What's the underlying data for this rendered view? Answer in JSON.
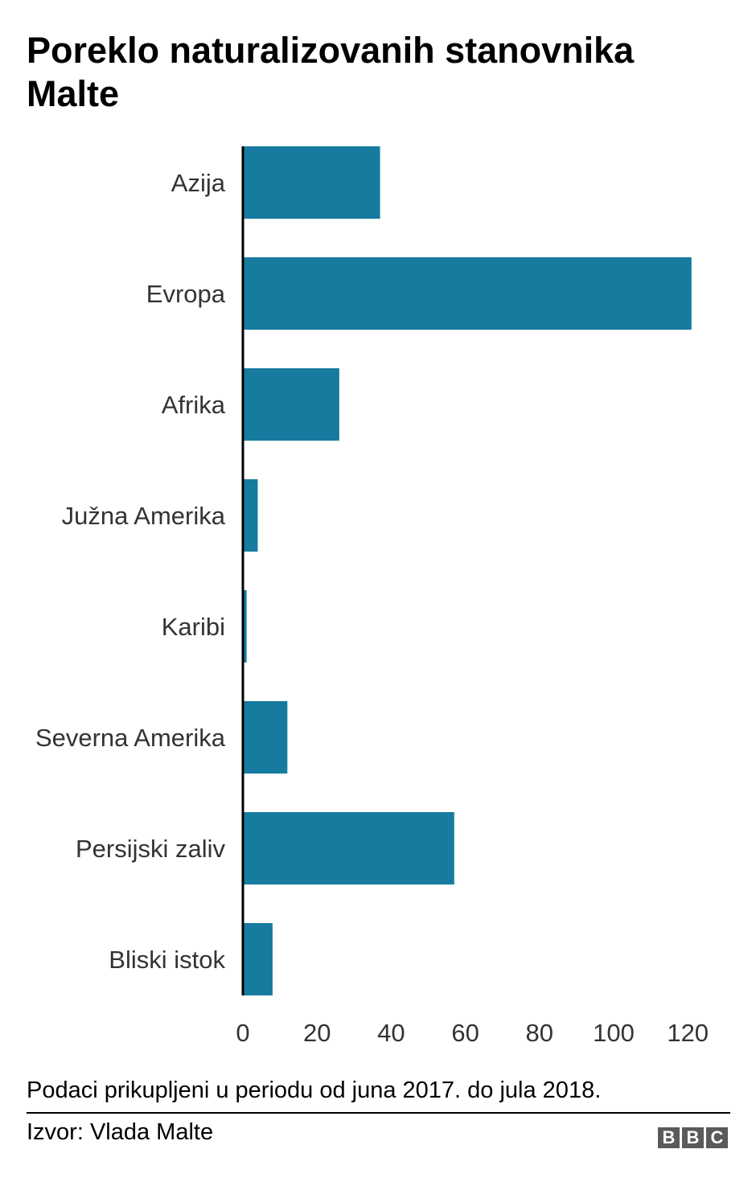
{
  "title": "Poreklo naturalizovanih stanovnika Malte",
  "note": "Podaci prikupljeni u periodu od juna 2017. do jula 2018.",
  "source": "Izvor: Vlada Malte",
  "logo": [
    "B",
    "B",
    "C"
  ],
  "colors": {
    "bar": "#167b9e",
    "axis": "#000000",
    "label": "#333333"
  },
  "chart_data": {
    "type": "bar",
    "orientation": "horizontal",
    "categories": [
      "Azija",
      "Evropa",
      "Afrika",
      "Južna Amerika",
      "Karibi",
      "Severna Amerika",
      "Persijski zaliv",
      "Bliski istok"
    ],
    "values": [
      37,
      121,
      26,
      4,
      1,
      12,
      57,
      8
    ],
    "xticks": [
      "0",
      "20",
      "40",
      "60",
      "80",
      "100",
      "120"
    ],
    "xlim": [
      0,
      125
    ],
    "grid": false
  }
}
